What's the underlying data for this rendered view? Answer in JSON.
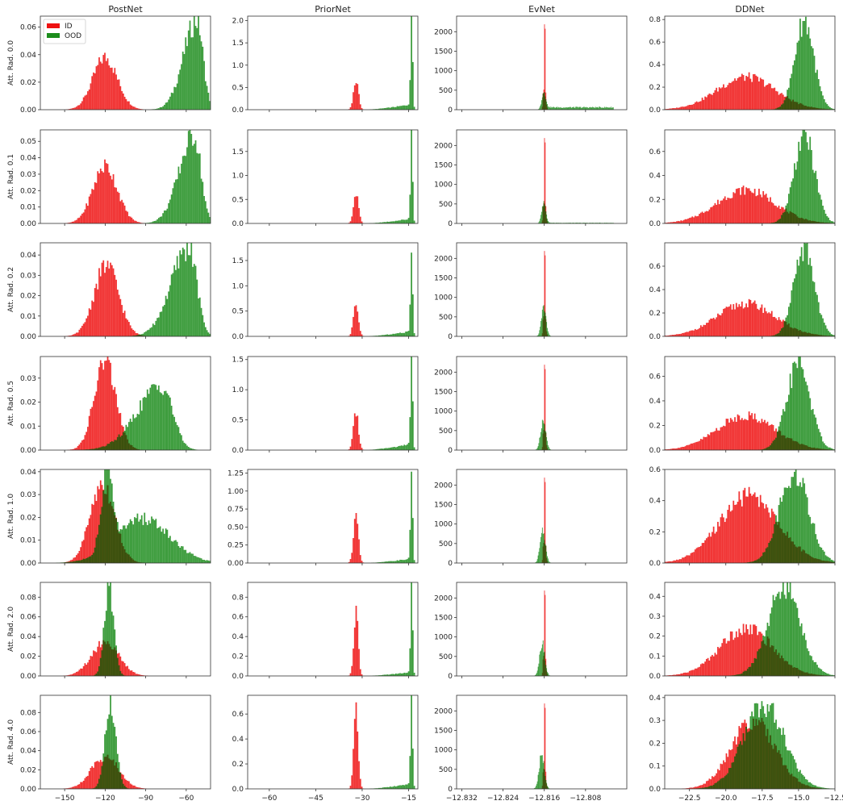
{
  "columns": [
    "PostNet",
    "PriorNet",
    "EvNet",
    "DDNet"
  ],
  "rows": [
    "Att. Rad. 0.0",
    "Att. Rad. 0.1",
    "Att. Rad. 0.2",
    "Att. Rad. 0.5",
    "Att. Rad. 1.0",
    "Att. Rad. 2.0",
    "Att. Rad. 4.0"
  ],
  "legend": [
    {
      "label": "ID",
      "color": "#ee1111"
    },
    {
      "label": "OOD",
      "color": "#1c8c1c"
    }
  ],
  "colors": {
    "id": "#ee1111",
    "ood": "#1c8c1c",
    "overlap": "#3b4d0c"
  },
  "chart_data": {
    "type": "bar",
    "subtype": "histogram-grid",
    "grid": false,
    "legend_position": "top-left of first panel",
    "x_ticks": {
      "PostNet": {
        "values": [
          -150,
          -120,
          -90,
          -60
        ],
        "labels": [
          "−150",
          "−120",
          "−90",
          "−60"
        ],
        "xlim": [
          -168,
          -42
        ]
      },
      "PriorNet": {
        "values": [
          -60,
          -45,
          -30,
          -15
        ],
        "labels": [
          "−60",
          "−45",
          "−30",
          "−15"
        ],
        "xlim": [
          -67,
          -12
        ]
      },
      "EvNet": {
        "values": [
          -12.832,
          -12.824,
          -12.816,
          -12.808
        ],
        "labels": [
          "−12.832",
          "−12.824",
          "−12.816",
          "−12.808"
        ],
        "xlim": [
          -12.833,
          -12.8
        ]
      },
      "DDNet": {
        "values": [
          -22.5,
          -20.0,
          -17.5,
          -15.0,
          -12.5
        ],
        "labels": [
          "−22.5",
          "−20.0",
          "−17.5",
          "−15.0",
          "−12.5"
        ],
        "xlim": [
          -24.2,
          -12.5
        ]
      }
    },
    "panels": [
      [
        {
          "ymax": 0.068,
          "yticks": [
            0,
            0.02,
            0.04,
            0.06
          ],
          "ylabels": [
            "0.00",
            "0.02",
            "0.04",
            "0.06"
          ],
          "id": {
            "mu": -120,
            "sigma": 9,
            "peak": 0.038
          },
          "ood": {
            "mu": -52,
            "sigma": 10,
            "peak": 0.065,
            "skew": -1
          }
        },
        {
          "ymax": 2.1,
          "yticks": [
            0,
            0.5,
            1.0,
            1.5,
            2.0
          ],
          "ylabels": [
            "0.0",
            "0.5",
            "1.0",
            "1.5",
            "2.0"
          ],
          "id": {
            "mu": -32,
            "sigma": 0.8,
            "peak": 0.65
          },
          "ood": {
            "spike": -14,
            "peak": 2.0,
            "tail": 0.12
          }
        },
        {
          "ymax": 2400,
          "yticks": [
            0,
            500,
            1000,
            1500,
            2000
          ],
          "ylabels": [
            "0",
            "500",
            "1000",
            "1500",
            "2000"
          ],
          "id": {
            "mu": -12.8159,
            "sigma": 0.00018,
            "peak": 2300
          },
          "ood": {
            "mu": -12.8161,
            "sigma": 0.0004,
            "peak": 380,
            "flat": 60
          }
        },
        {
          "ymax": 0.83,
          "yticks": [
            0,
            0.2,
            0.4,
            0.6,
            0.8
          ],
          "ylabels": [
            "0.0",
            "0.2",
            "0.4",
            "0.6",
            "0.8"
          ],
          "id": {
            "mu": -18.6,
            "sigma": 2.0,
            "peak": 0.29
          },
          "ood": {
            "mu": -14.6,
            "sigma": 0.65,
            "peak": 0.79
          }
        }
      ],
      [
        {
          "ymax": 0.057,
          "yticks": [
            0,
            0.01,
            0.02,
            0.03,
            0.04,
            0.05
          ],
          "ylabels": [
            "0.00",
            "0.01",
            "0.02",
            "0.03",
            "0.04",
            "0.05"
          ],
          "id": {
            "mu": -120,
            "sigma": 9,
            "peak": 0.035
          },
          "ood": {
            "mu": -54,
            "sigma": 11,
            "peak": 0.054,
            "skew": -1
          }
        },
        {
          "ymax": 1.95,
          "yticks": [
            0,
            0.5,
            1.0,
            1.5
          ],
          "ylabels": [
            "0.0",
            "0.5",
            "1.0",
            "1.5"
          ],
          "id": {
            "mu": -32,
            "sigma": 0.8,
            "peak": 0.62
          },
          "ood": {
            "spike": -14,
            "peak": 1.85,
            "tail": 0.1
          }
        },
        {
          "ymax": 2400,
          "yticks": [
            0,
            500,
            1000,
            1500,
            2000
          ],
          "ylabels": [
            "0",
            "500",
            "1000",
            "1500",
            "2000"
          ],
          "id": {
            "mu": -12.8159,
            "sigma": 0.00018,
            "peak": 2300
          },
          "ood": {
            "mu": -12.8161,
            "sigma": 0.0004,
            "peak": 500,
            "flat": 15
          }
        },
        {
          "ymax": 0.78,
          "yticks": [
            0,
            0.2,
            0.4,
            0.6
          ],
          "ylabels": [
            "0.0",
            "0.2",
            "0.4",
            "0.6"
          ],
          "id": {
            "mu": -18.6,
            "sigma": 2.0,
            "peak": 0.28
          },
          "ood": {
            "mu": -14.6,
            "sigma": 0.7,
            "peak": 0.74
          }
        }
      ],
      [
        {
          "ymax": 0.046,
          "yticks": [
            0,
            0.01,
            0.02,
            0.03,
            0.04
          ],
          "ylabels": [
            "0.00",
            "0.01",
            "0.02",
            "0.03",
            "0.04"
          ],
          "id": {
            "mu": -119,
            "sigma": 9,
            "peak": 0.035
          },
          "ood": {
            "mu": -58,
            "sigma": 13,
            "peak": 0.044,
            "skew": -1
          }
        },
        {
          "ymax": 1.85,
          "yticks": [
            0,
            0.5,
            1.0,
            1.5
          ],
          "ylabels": [
            "0.0",
            "0.5",
            "1.0",
            "1.5"
          ],
          "id": {
            "mu": -32,
            "sigma": 0.8,
            "peak": 0.62
          },
          "ood": {
            "spike": -14,
            "peak": 1.75,
            "tail": 0.1
          }
        },
        {
          "ymax": 2400,
          "yticks": [
            0,
            500,
            1000,
            1500,
            2000
          ],
          "ylabels": [
            "0",
            "500",
            "1000",
            "1500",
            "2000"
          ],
          "id": {
            "mu": -12.8159,
            "sigma": 0.00018,
            "peak": 2300
          },
          "ood": {
            "mu": -12.8161,
            "sigma": 0.00045,
            "peak": 750
          }
        },
        {
          "ymax": 0.8,
          "yticks": [
            0,
            0.2,
            0.4,
            0.6
          ],
          "ylabels": [
            "0.0",
            "0.2",
            "0.4",
            "0.6"
          ],
          "id": {
            "mu": -18.6,
            "sigma": 2.0,
            "peak": 0.28
          },
          "ood": {
            "mu": -14.6,
            "sigma": 0.7,
            "peak": 0.75
          }
        }
      ],
      [
        {
          "ymax": 0.039,
          "yticks": [
            0,
            0.01,
            0.02,
            0.03
          ],
          "ylabels": [
            "0.00",
            "0.01",
            "0.02",
            "0.03"
          ],
          "id": {
            "mu": -120,
            "sigma": 8,
            "peak": 0.037
          },
          "ood": {
            "mu": -78,
            "sigma": 18,
            "peak": 0.027,
            "skew": -1
          }
        },
        {
          "ymax": 1.55,
          "yticks": [
            0,
            0.5,
            1.0,
            1.5
          ],
          "ylabels": [
            "0.0",
            "0.5",
            "1.0",
            "1.5"
          ],
          "id": {
            "mu": -32,
            "sigma": 0.8,
            "peak": 0.62
          },
          "ood": {
            "spike": -14,
            "peak": 1.45,
            "tail": 0.1
          }
        },
        {
          "ymax": 2400,
          "yticks": [
            0,
            500,
            1000,
            1500,
            2000
          ],
          "ylabels": [
            "0",
            "500",
            "1000",
            "1500",
            "2000"
          ],
          "id": {
            "mu": -12.8159,
            "sigma": 0.00018,
            "peak": 2300
          },
          "ood": {
            "mu": -12.8162,
            "sigma": 0.0005,
            "peak": 780
          }
        },
        {
          "ymax": 0.76,
          "yticks": [
            0,
            0.2,
            0.4,
            0.6
          ],
          "ylabels": [
            "0.0",
            "0.2",
            "0.4",
            "0.6"
          ],
          "id": {
            "mu": -18.6,
            "sigma": 2.0,
            "peak": 0.28
          },
          "ood": {
            "mu": -15.0,
            "sigma": 0.8,
            "peak": 0.7
          }
        }
      ],
      [
        {
          "ymax": 0.041,
          "yticks": [
            0,
            0.01,
            0.02,
            0.03,
            0.04
          ],
          "ylabels": [
            "0.00",
            "0.01",
            "0.02",
            "0.03",
            "0.04"
          ],
          "id": {
            "mu": -122,
            "sigma": 9,
            "peak": 0.035
          },
          "ood": {
            "mu": -118,
            "sigma": 5,
            "peak": 0.039,
            "broad_mu": -92,
            "broad_sigma": 20,
            "broad_peak": 0.015
          }
        },
        {
          "ymax": 1.3,
          "yticks": [
            0,
            0.25,
            0.5,
            0.75,
            1.0,
            1.25
          ],
          "ylabels": [
            "0.00",
            "0.25",
            "0.50",
            "0.75",
            "1.00",
            "1.25"
          ],
          "id": {
            "mu": -32,
            "sigma": 0.8,
            "peak": 0.62
          },
          "ood": {
            "spike": -14,
            "peak": 1.22,
            "tail": 0.06
          }
        },
        {
          "ymax": 2400,
          "yticks": [
            0,
            500,
            1000,
            1500,
            2000
          ],
          "ylabels": [
            "0",
            "500",
            "1000",
            "1500",
            "2000"
          ],
          "id": {
            "mu": -12.8159,
            "sigma": 0.00018,
            "peak": 2300
          },
          "ood": {
            "mu": -12.8163,
            "sigma": 0.0005,
            "peak": 850
          }
        },
        {
          "ymax": 0.6,
          "yticks": [
            0,
            0.2,
            0.4,
            0.6
          ],
          "ylabels": [
            "0.0",
            "0.2",
            "0.4",
            "0.6"
          ],
          "id": {
            "mu": -18.4,
            "sigma": 2.0,
            "peak": 0.43
          },
          "ood": {
            "mu": -15.3,
            "sigma": 1.0,
            "peak": 0.58
          }
        }
      ],
      [
        {
          "ymax": 0.095,
          "yticks": [
            0,
            0.02,
            0.04,
            0.06,
            0.08
          ],
          "ylabels": [
            "0.00",
            "0.02",
            "0.04",
            "0.06",
            "0.08"
          ],
          "id": {
            "mu": -120,
            "sigma": 10,
            "peak": 0.035
          },
          "ood": {
            "mu": -117,
            "sigma": 3.5,
            "peak": 0.09
          }
        },
        {
          "ymax": 0.95,
          "yticks": [
            0,
            0.2,
            0.4,
            0.6,
            0.8
          ],
          "ylabels": [
            "0.0",
            "0.2",
            "0.4",
            "0.6",
            "0.8"
          ],
          "id": {
            "mu": -32,
            "sigma": 0.7,
            "peak": 0.65
          },
          "ood": {
            "spike": -14,
            "peak": 0.92,
            "tail": 0.04
          }
        },
        {
          "ymax": 2400,
          "yticks": [
            0,
            500,
            1000,
            1500,
            2000
          ],
          "ylabels": [
            "0",
            "500",
            "1000",
            "1500",
            "2000"
          ],
          "id": {
            "mu": -12.8159,
            "sigma": 0.00018,
            "peak": 2300
          },
          "ood": {
            "mu": -12.8164,
            "sigma": 0.0005,
            "peak": 850
          }
        },
        {
          "ymax": 0.47,
          "yticks": [
            0,
            0.1,
            0.2,
            0.3,
            0.4
          ],
          "ylabels": [
            "0.0",
            "0.1",
            "0.2",
            "0.3",
            "0.4"
          ],
          "id": {
            "mu": -18.6,
            "sigma": 1.8,
            "peak": 0.24
          },
          "ood": {
            "mu": -16.0,
            "sigma": 1.1,
            "peak": 0.45
          }
        }
      ],
      [
        {
          "ymax": 0.098,
          "yticks": [
            0,
            0.02,
            0.04,
            0.06,
            0.08
          ],
          "ylabels": [
            "0.00",
            "0.02",
            "0.04",
            "0.06",
            "0.08"
          ],
          "id": {
            "mu": -120,
            "sigma": 10,
            "peak": 0.034
          },
          "ood": {
            "mu": -116,
            "sigma": 4,
            "peak": 0.09
          }
        },
        {
          "ymax": 0.75,
          "yticks": [
            0,
            0.2,
            0.4,
            0.6
          ],
          "ylabels": [
            "0.0",
            "0.2",
            "0.4",
            "0.6"
          ],
          "id": {
            "mu": -32,
            "sigma": 0.7,
            "peak": 0.64
          },
          "ood": {
            "spike": -14,
            "peak": 0.68,
            "tail": 0.04
          }
        },
        {
          "ymax": 2400,
          "yticks": [
            0,
            500,
            1000,
            1500,
            2000
          ],
          "ylabels": [
            "0",
            "500",
            "1000",
            "1500",
            "2000"
          ],
          "id": {
            "mu": -12.8159,
            "sigma": 0.00018,
            "peak": 2300
          },
          "ood": {
            "mu": -12.8165,
            "sigma": 0.0005,
            "peak": 870
          }
        },
        {
          "ymax": 0.41,
          "yticks": [
            0,
            0.1,
            0.2,
            0.3,
            0.4
          ],
          "ylabels": [
            "0.0",
            "0.1",
            "0.2",
            "0.3",
            "0.4"
          ],
          "id": {
            "mu": -18.1,
            "sigma": 1.5,
            "peak": 0.3
          },
          "ood": {
            "mu": -17.4,
            "sigma": 1.4,
            "peak": 0.37
          }
        }
      ]
    ]
  }
}
